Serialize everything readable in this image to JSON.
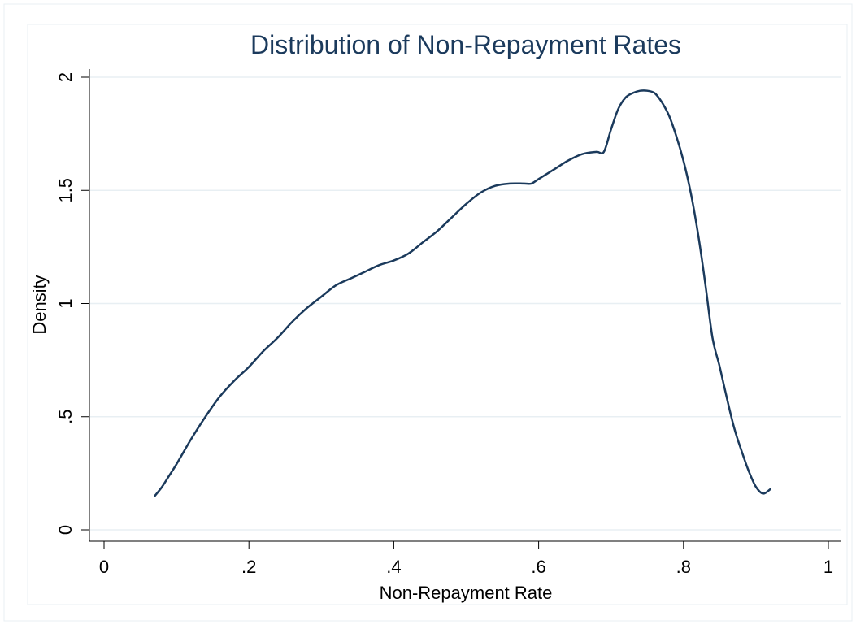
{
  "chart_data": {
    "type": "line",
    "title": "Distribution of Non-Repayment Rates",
    "xlabel": "Non-Repayment Rate",
    "ylabel": "Density",
    "xlim": [
      0,
      1
    ],
    "ylim": [
      0,
      2
    ],
    "xticks": [
      {
        "value": 0,
        "label": "0"
      },
      {
        "value": 0.2,
        "label": ".2"
      },
      {
        "value": 0.4,
        "label": ".4"
      },
      {
        "value": 0.6,
        "label": ".6"
      },
      {
        "value": 0.8,
        "label": ".8"
      },
      {
        "value": 1,
        "label": "1"
      }
    ],
    "yticks": [
      {
        "value": 0,
        "label": "0"
      },
      {
        "value": 0.5,
        "label": ".5"
      },
      {
        "value": 1,
        "label": "1"
      },
      {
        "value": 1.5,
        "label": "1.5"
      },
      {
        "value": 2,
        "label": "2"
      }
    ],
    "grid": "horizontal",
    "series": [
      {
        "x": [
          0.07,
          0.08,
          0.09,
          0.1,
          0.12,
          0.14,
          0.16,
          0.18,
          0.2,
          0.22,
          0.24,
          0.26,
          0.28,
          0.3,
          0.32,
          0.34,
          0.36,
          0.38,
          0.4,
          0.42,
          0.44,
          0.46,
          0.48,
          0.5,
          0.52,
          0.54,
          0.56,
          0.58,
          0.59,
          0.6,
          0.62,
          0.64,
          0.66,
          0.68,
          0.69,
          0.7,
          0.71,
          0.72,
          0.73,
          0.74,
          0.75,
          0.76,
          0.77,
          0.78,
          0.79,
          0.8,
          0.81,
          0.82,
          0.83,
          0.84,
          0.85,
          0.86,
          0.87,
          0.88,
          0.89,
          0.9,
          0.91,
          0.92
        ],
        "y": [
          0.15,
          0.19,
          0.24,
          0.29,
          0.4,
          0.5,
          0.59,
          0.66,
          0.72,
          0.79,
          0.85,
          0.92,
          0.98,
          1.03,
          1.08,
          1.11,
          1.14,
          1.17,
          1.19,
          1.22,
          1.27,
          1.32,
          1.38,
          1.44,
          1.49,
          1.52,
          1.53,
          1.53,
          1.53,
          1.55,
          1.59,
          1.63,
          1.66,
          1.67,
          1.67,
          1.77,
          1.86,
          1.91,
          1.93,
          1.94,
          1.94,
          1.93,
          1.89,
          1.83,
          1.74,
          1.63,
          1.49,
          1.31,
          1.09,
          0.85,
          0.72,
          0.58,
          0.45,
          0.35,
          0.26,
          0.19,
          0.16,
          0.18
        ],
        "color": "#1b3a5c"
      }
    ]
  },
  "colors": {
    "line": "#1b3a5c",
    "title": "#1b3a5c",
    "grid": "#e8eff3",
    "axis": "#000000",
    "frame": "#e8eff3"
  }
}
